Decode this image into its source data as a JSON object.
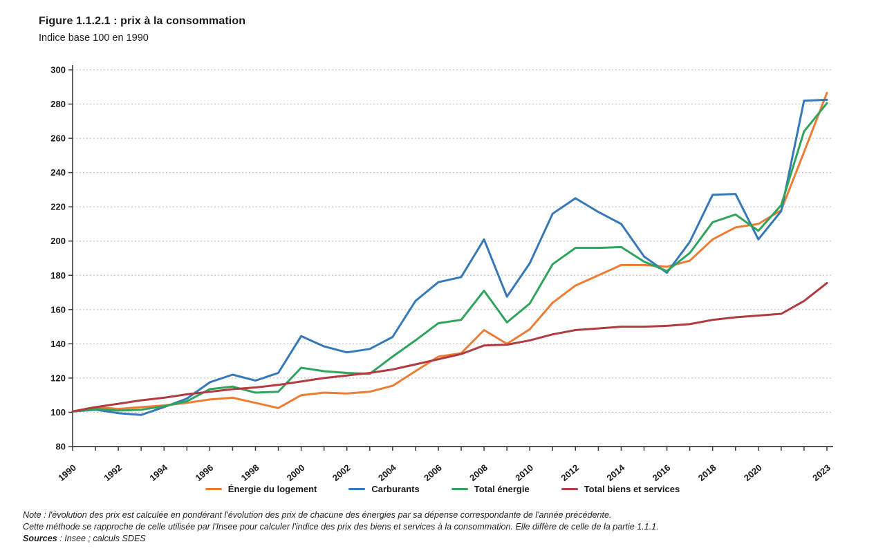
{
  "header": {
    "title": "Figure 1.1.2.1 : prix à la consommation",
    "subtitle": "Indice base 100 en 1990"
  },
  "notes": {
    "line1": "Note : l'évolution des prix est calculée en pondérant l'évolution des prix de chacune des énergies par sa dépense correspondante de l'année précédente.",
    "line2": "Cette méthode se rapproche de celle utilisée par l'Insee pour calculer l'indice des prix des biens et services à la consommation. Elle diffère de celle de la partie 1.1.1.",
    "sources_label": "Sources",
    "sources_text": " : Insee ; calculs SDES"
  },
  "chart_data": {
    "type": "line",
    "title": "Figure 1.1.2.1 : prix à la consommation",
    "subtitle": "Indice base 100 en 1990",
    "xlabel": "",
    "ylabel": "",
    "ylim": [
      80,
      300
    ],
    "y_tick_step": 20,
    "x_range": [
      1990,
      2023
    ],
    "grid": "horizontal-dashed",
    "legend_position": "bottom",
    "x_tick_labels": [
      "1990",
      "1992",
      "1994",
      "1996",
      "1998",
      "2000",
      "2002",
      "2004",
      "2006",
      "2008",
      "2010",
      "2012",
      "2014",
      "2016",
      "2018",
      "2020",
      "2023"
    ],
    "x": [
      1990,
      1991,
      1992,
      1993,
      1994,
      1995,
      1996,
      1997,
      1998,
      1999,
      2000,
      2001,
      2002,
      2003,
      2004,
      2005,
      2006,
      2007,
      2008,
      2009,
      2010,
      2011,
      2012,
      2013,
      2014,
      2015,
      2016,
      2017,
      2018,
      2019,
      2020,
      2021,
      2022,
      2023
    ],
    "series": [
      {
        "name": "Énergie du logement",
        "color": "#EE7D33",
        "values": [
          100.5,
          103,
          102,
          103,
          104,
          105.5,
          107.5,
          108.5,
          105.5,
          102.5,
          110,
          111.5,
          111,
          112,
          115.5,
          124,
          132.5,
          134.5,
          148,
          140,
          148.5,
          164,
          174,
          180,
          186,
          186,
          185,
          188.5,
          201,
          208,
          210,
          218,
          252,
          286.5
        ]
      },
      {
        "name": "Carburants",
        "color": "#3579B8",
        "values": [
          100.5,
          101.5,
          99.5,
          98.5,
          103,
          108,
          117.5,
          122,
          118.5,
          123,
          144.5,
          138.5,
          135,
          137,
          144,
          165,
          176,
          179,
          201,
          167.5,
          187,
          216,
          225,
          217,
          210,
          191,
          181.5,
          199.5,
          227,
          227.5,
          201,
          217.5,
          282,
          282.5
        ]
      },
      {
        "name": "Total énergie",
        "color": "#2FA45C",
        "values": [
          100.5,
          102,
          101,
          101.5,
          103.5,
          106.5,
          113.5,
          115,
          111.5,
          112,
          126,
          124,
          123,
          122.5,
          132.5,
          142,
          152,
          154,
          171,
          152.5,
          163.5,
          186.5,
          196,
          196,
          196.5,
          188,
          182.5,
          193,
          211,
          215.5,
          206,
          221,
          264,
          280.5
        ]
      },
      {
        "name": "Total biens et services",
        "color": "#B03B41",
        "values": [
          100.5,
          103,
          105,
          107,
          108.5,
          110.5,
          112,
          113.5,
          114.5,
          116,
          118,
          120,
          121.5,
          123,
          125,
          128,
          131,
          134,
          139,
          139.5,
          142,
          145.5,
          148,
          149,
          150,
          150,
          150.5,
          151.5,
          154,
          155.5,
          156.5,
          157.5,
          165,
          175.5
        ]
      }
    ]
  }
}
